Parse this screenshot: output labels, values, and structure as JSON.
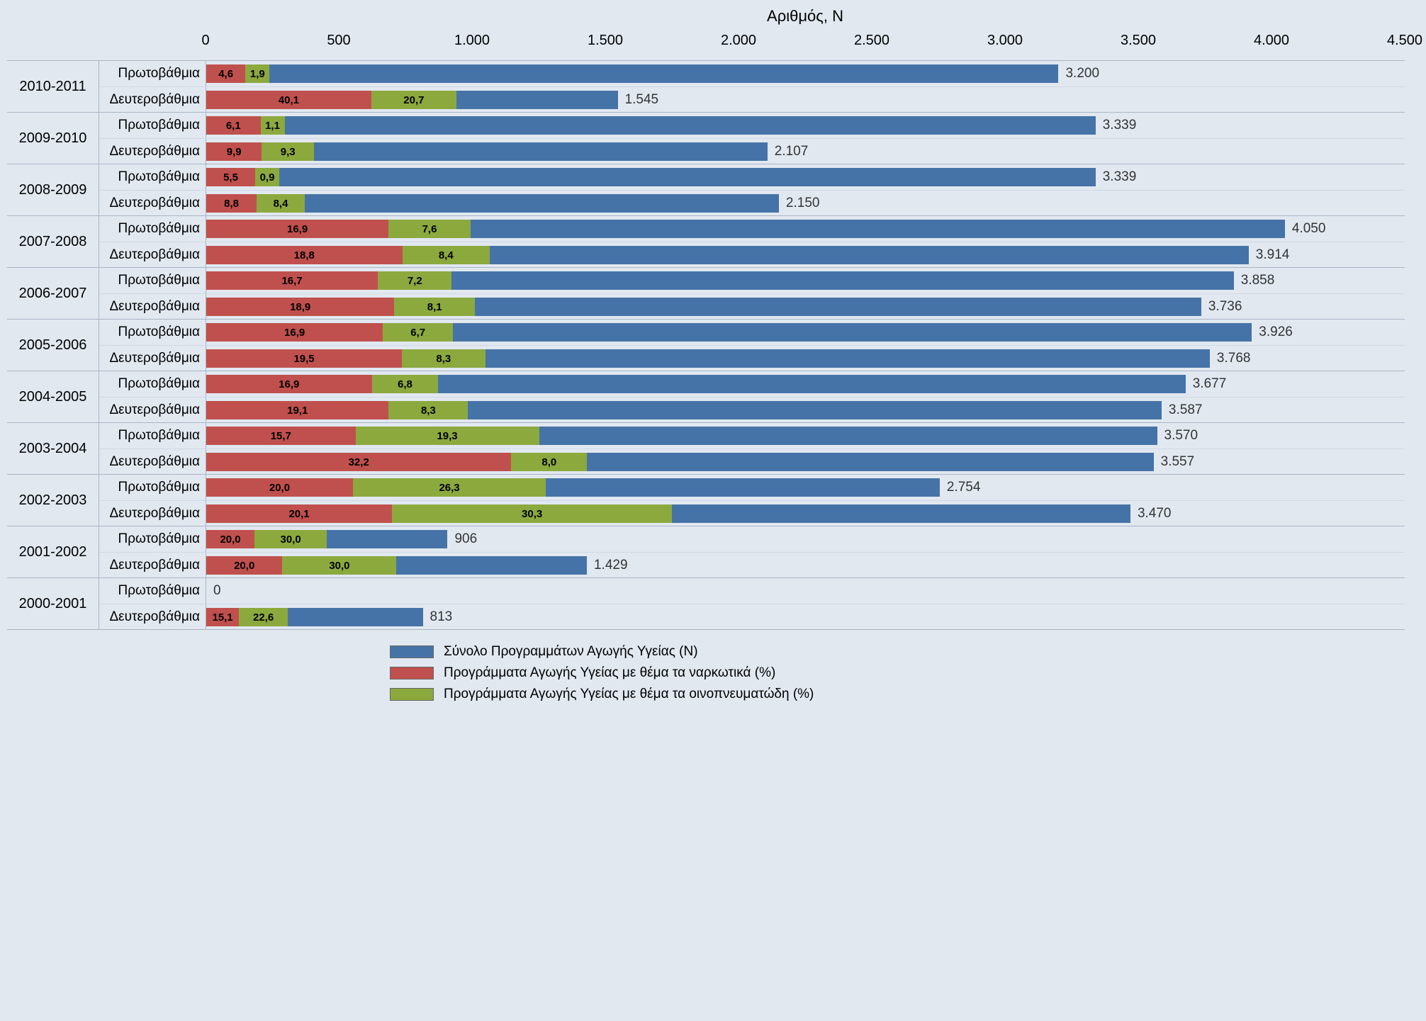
{
  "chart": {
    "type": "bar",
    "title": "Αριθμός, Ν",
    "title_fontsize": 22,
    "background_color": "#e1e8f0",
    "gridline_color": "#aab5c4",
    "x_axis": {
      "min": 0,
      "max": 4500,
      "tick_step": 500,
      "tick_labels": [
        "0",
        "500",
        "1.000",
        "1.500",
        "2.000",
        "2.500",
        "3.000",
        "3.500",
        "4.000",
        "4.500"
      ]
    },
    "subcategory_labels": {
      "primary": "Πρωτοβάθμια",
      "secondary": "Δευτεροβάθμια"
    },
    "series_colors": {
      "total": "#4573a7",
      "drugs": "#c0504d",
      "alcohol": "#8ca93e"
    },
    "label_text_colors": {
      "on_total": "#ffffff",
      "on_drugs": "#000000",
      "on_alcohol": "#000000",
      "total_value": "#333333"
    },
    "legend": {
      "items": [
        {
          "key": "total",
          "label": "Σύνολο Προγραμμάτων Αγωγής Υγείας (Ν)"
        },
        {
          "key": "drugs",
          "label": "Προγράμματα Αγωγής Υγείας με θέμα τα ναρκωτικά (%)"
        },
        {
          "key": "alcohol",
          "label": "Προγράμματα Αγωγής Υγείας με θέμα τα οινοπνευματώδη (%)"
        }
      ]
    },
    "groups": [
      {
        "year": "2010-2011",
        "primary": {
          "total_n": 3200,
          "total_label": "3.200",
          "drugs_pct": 4.6,
          "drugs_label": "4,6",
          "alcohol_pct": 1.9,
          "alcohol_label": "1,9"
        },
        "secondary": {
          "total_n": 1545,
          "total_label": "1.545",
          "drugs_pct": 40.1,
          "drugs_label": "40,1",
          "alcohol_pct": 20.7,
          "alcohol_label": "20,7"
        }
      },
      {
        "year": "2009-2010",
        "primary": {
          "total_n": 3339,
          "total_label": "3.339",
          "drugs_pct": 6.1,
          "drugs_label": "6,1",
          "alcohol_pct": 1.1,
          "alcohol_label": "1,1"
        },
        "secondary": {
          "total_n": 2107,
          "total_label": "2.107",
          "drugs_pct": 9.9,
          "drugs_label": "9,9",
          "alcohol_pct": 9.3,
          "alcohol_label": "9,3"
        }
      },
      {
        "year": "2008-2009",
        "primary": {
          "total_n": 3339,
          "total_label": "3.339",
          "drugs_pct": 5.5,
          "drugs_label": "5,5",
          "alcohol_pct": 0.9,
          "alcohol_label": "0,9"
        },
        "secondary": {
          "total_n": 2150,
          "total_label": "2.150",
          "drugs_pct": 8.8,
          "drugs_label": "8,8",
          "alcohol_pct": 8.4,
          "alcohol_label": "8,4"
        }
      },
      {
        "year": "2007-2008",
        "primary": {
          "total_n": 4050,
          "total_label": "4.050",
          "drugs_pct": 16.9,
          "drugs_label": "16,9",
          "alcohol_pct": 7.6,
          "alcohol_label": "7,6"
        },
        "secondary": {
          "total_n": 3914,
          "total_label": "3.914",
          "drugs_pct": 18.8,
          "drugs_label": "18,8",
          "alcohol_pct": 8.4,
          "alcohol_label": "8,4"
        }
      },
      {
        "year": "2006-2007",
        "primary": {
          "total_n": 3858,
          "total_label": "3.858",
          "drugs_pct": 16.7,
          "drugs_label": "16,7",
          "alcohol_pct": 7.2,
          "alcohol_label": "7,2"
        },
        "secondary": {
          "total_n": 3736,
          "total_label": "3.736",
          "drugs_pct": 18.9,
          "drugs_label": "18,9",
          "alcohol_pct": 8.1,
          "alcohol_label": "8,1"
        }
      },
      {
        "year": "2005-2006",
        "primary": {
          "total_n": 3926,
          "total_label": "3.926",
          "drugs_pct": 16.9,
          "drugs_label": "16,9",
          "alcohol_pct": 6.7,
          "alcohol_label": "6,7"
        },
        "secondary": {
          "total_n": 3768,
          "total_label": "3.768",
          "drugs_pct": 19.5,
          "drugs_label": "19,5",
          "alcohol_pct": 8.3,
          "alcohol_label": "8,3"
        }
      },
      {
        "year": "2004-2005",
        "primary": {
          "total_n": 3677,
          "total_label": "3.677",
          "drugs_pct": 16.9,
          "drugs_label": "16,9",
          "alcohol_pct": 6.8,
          "alcohol_label": "6,8"
        },
        "secondary": {
          "total_n": 3587,
          "total_label": "3.587",
          "drugs_pct": 19.1,
          "drugs_label": "19,1",
          "alcohol_pct": 8.3,
          "alcohol_label": "8,3"
        }
      },
      {
        "year": "2003-2004",
        "primary": {
          "total_n": 3570,
          "total_label": "3.570",
          "drugs_pct": 15.7,
          "drugs_label": "15,7",
          "alcohol_pct": 19.3,
          "alcohol_label": "19,3"
        },
        "secondary": {
          "total_n": 3557,
          "total_label": "3.557",
          "drugs_pct": 32.2,
          "drugs_label": "32,2",
          "alcohol_pct": 8.0,
          "alcohol_label": "8,0"
        }
      },
      {
        "year": "2002-2003",
        "primary": {
          "total_n": 2754,
          "total_label": "2.754",
          "drugs_pct": 20.0,
          "drugs_label": "20,0",
          "alcohol_pct": 26.3,
          "alcohol_label": "26,3"
        },
        "secondary": {
          "total_n": 3470,
          "total_label": "3.470",
          "drugs_pct": 20.1,
          "drugs_label": "20,1",
          "alcohol_pct": 30.3,
          "alcohol_label": "30,3"
        }
      },
      {
        "year": "2001-2002",
        "primary": {
          "total_n": 906,
          "total_label": "906",
          "drugs_pct": 20.0,
          "drugs_label": "20,0",
          "alcohol_pct": 30.0,
          "alcohol_label": "30,0"
        },
        "secondary": {
          "total_n": 1429,
          "total_label": "1.429",
          "drugs_pct": 20.0,
          "drugs_label": "20,0",
          "alcohol_pct": 30.0,
          "alcohol_label": "30,0"
        }
      },
      {
        "year": "2000-2001",
        "primary": {
          "total_n": 0,
          "total_label": "0",
          "drugs_pct": 0,
          "drugs_label": "",
          "alcohol_pct": 0,
          "alcohol_label": ""
        },
        "secondary": {
          "total_n": 813,
          "total_label": "813",
          "drugs_pct": 15.1,
          "drugs_label": "15,1",
          "alcohol_pct": 22.6,
          "alcohol_label": "22,6"
        }
      }
    ]
  }
}
